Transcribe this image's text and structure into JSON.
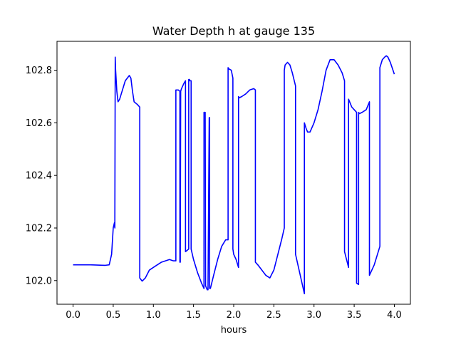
{
  "chart_data": {
    "type": "line",
    "title": "Water Depth h at gauge 135",
    "xlabel": "hours",
    "ylabel": "",
    "xlim": [
      -0.2,
      4.2
    ],
    "ylim": [
      101.91,
      102.91
    ],
    "grid": false,
    "xticks": [
      0.0,
      0.5,
      1.0,
      1.5,
      2.0,
      2.5,
      3.0,
      3.5,
      4.0
    ],
    "xtick_labels": [
      "0.0",
      "0.5",
      "1.0",
      "1.5",
      "2.0",
      "2.5",
      "3.0",
      "3.5",
      "4.0"
    ],
    "yticks": [
      102.0,
      102.2,
      102.4,
      102.6,
      102.8
    ],
    "ytick_labels": [
      "102.0",
      "102.2",
      "102.4",
      "102.6",
      "102.8"
    ],
    "series": [
      {
        "color": "#0000ff",
        "x": [
          0.0,
          0.2,
          0.4,
          0.45,
          0.48,
          0.5,
          0.515,
          0.52,
          0.525,
          0.53,
          0.545,
          0.56,
          0.58,
          0.6,
          0.65,
          0.7,
          0.72,
          0.74,
          0.76,
          0.8,
          0.83,
          0.83,
          0.86,
          0.9,
          0.95,
          1.0,
          1.1,
          1.2,
          1.25,
          1.28,
          1.28,
          1.31,
          1.33,
          1.33,
          1.335,
          1.34,
          1.34,
          1.35,
          1.38,
          1.4,
          1.4,
          1.44,
          1.44,
          1.45,
          1.45,
          1.47,
          1.47,
          1.5,
          1.55,
          1.6,
          1.63,
          1.63,
          1.645,
          1.65,
          1.67,
          1.68,
          1.695,
          1.7,
          1.7,
          1.71,
          1.75,
          1.8,
          1.85,
          1.9,
          1.93,
          1.93,
          1.94,
          1.97,
          1.99,
          1.99,
          2.0,
          2.03,
          2.06,
          2.06,
          2.07,
          2.1,
          2.15,
          2.2,
          2.25,
          2.27,
          2.27,
          2.3,
          2.35,
          2.4,
          2.45,
          2.5,
          2.55,
          2.6,
          2.63,
          2.63,
          2.64,
          2.67,
          2.7,
          2.73,
          2.77,
          2.77,
          2.88,
          2.88,
          2.9,
          2.92,
          2.95,
          3.0,
          3.05,
          3.1,
          3.15,
          3.2,
          3.25,
          3.3,
          3.35,
          3.38,
          3.38,
          3.43,
          3.43,
          3.47,
          3.5,
          3.53,
          3.53,
          3.555,
          3.555,
          3.565,
          3.6,
          3.65,
          3.69,
          3.69,
          3.75,
          3.8,
          3.82,
          3.82,
          3.83,
          3.85,
          3.88,
          3.9,
          3.92,
          3.95,
          4.0
        ],
        "y": [
          102.06,
          102.06,
          102.058,
          102.06,
          102.1,
          102.2,
          102.22,
          102.2,
          102.85,
          102.8,
          102.72,
          102.68,
          102.69,
          102.71,
          102.76,
          102.78,
          102.77,
          102.72,
          102.68,
          102.67,
          102.66,
          102.01,
          101.998,
          102.01,
          102.04,
          102.05,
          102.07,
          102.08,
          102.075,
          102.075,
          102.725,
          102.725,
          102.72,
          102.07,
          102.07,
          102.72,
          102.72,
          102.73,
          102.75,
          102.76,
          102.11,
          102.12,
          102.765,
          102.765,
          102.76,
          102.76,
          102.12,
          102.08,
          102.03,
          101.99,
          101.97,
          102.64,
          102.64,
          101.98,
          101.965,
          101.965,
          102.62,
          102.62,
          101.97,
          101.97,
          102.02,
          102.08,
          102.13,
          102.155,
          102.155,
          102.81,
          102.805,
          102.8,
          102.77,
          102.12,
          102.1,
          102.08,
          102.05,
          102.7,
          102.695,
          102.7,
          102.71,
          102.725,
          102.73,
          102.725,
          102.07,
          102.06,
          102.04,
          102.02,
          102.01,
          102.04,
          102.1,
          102.16,
          102.2,
          102.8,
          102.82,
          102.83,
          102.82,
          102.79,
          102.74,
          102.1,
          101.95,
          102.6,
          102.58,
          102.565,
          102.565,
          102.6,
          102.65,
          102.72,
          102.8,
          102.84,
          102.84,
          102.82,
          102.79,
          102.76,
          102.11,
          102.05,
          102.69,
          102.66,
          102.65,
          102.64,
          101.99,
          101.985,
          102.64,
          102.635,
          102.64,
          102.65,
          102.68,
          102.02,
          102.06,
          102.11,
          102.13,
          102.81,
          102.82,
          102.84,
          102.85,
          102.855,
          102.85,
          102.83,
          102.785
        ]
      }
    ]
  }
}
